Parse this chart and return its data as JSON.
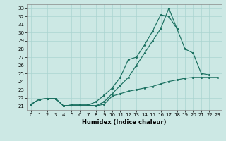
{
  "xlabel": "Humidex (Indice chaleur)",
  "bg_color": "#cce8e4",
  "line_color": "#1a7060",
  "grid_color": "#aad4d0",
  "xlim": [
    -0.5,
    23.5
  ],
  "ylim": [
    20.5,
    33.5
  ],
  "xticks": [
    0,
    1,
    2,
    3,
    4,
    5,
    6,
    7,
    8,
    9,
    10,
    11,
    12,
    13,
    14,
    15,
    16,
    17,
    18,
    19,
    20,
    21,
    22,
    23
  ],
  "yticks": [
    21,
    22,
    23,
    24,
    25,
    26,
    27,
    28,
    29,
    30,
    31,
    32,
    33
  ],
  "line1_x": [
    0,
    1,
    2,
    3,
    4,
    5,
    6,
    7,
    8,
    9,
    10,
    11,
    12,
    13,
    14,
    15,
    16,
    17,
    18,
    19,
    20,
    21,
    22,
    23
  ],
  "line1_y": [
    21.2,
    21.8,
    21.9,
    21.9,
    21.0,
    21.1,
    21.1,
    21.1,
    21.0,
    21.2,
    22.2,
    22.5,
    22.8,
    23.0,
    23.2,
    23.4,
    23.7,
    24.0,
    24.2,
    24.4,
    24.5,
    24.5,
    24.5,
    24.5
  ],
  "line2_x": [
    0,
    1,
    2,
    3,
    4,
    5,
    6,
    7,
    8,
    9,
    10,
    11,
    12,
    13,
    14,
    15,
    16,
    17,
    18,
    19,
    20,
    21,
    22
  ],
  "line2_y": [
    21.2,
    21.8,
    21.9,
    21.9,
    21.0,
    21.1,
    21.1,
    21.1,
    21.5,
    22.3,
    23.2,
    24.5,
    26.7,
    27.0,
    28.5,
    30.2,
    32.2,
    32.0,
    30.5,
    28.0,
    27.5,
    25.0,
    24.8
  ],
  "line3_x": [
    0,
    1,
    2,
    3,
    4,
    5,
    6,
    7,
    8,
    9,
    10,
    11,
    12,
    13,
    14,
    15,
    16,
    17,
    18
  ],
  "line3_y": [
    21.2,
    21.8,
    21.9,
    21.9,
    21.0,
    21.1,
    21.1,
    21.1,
    21.0,
    21.5,
    22.5,
    23.5,
    24.5,
    26.0,
    27.5,
    29.0,
    30.5,
    33.0,
    30.5
  ]
}
